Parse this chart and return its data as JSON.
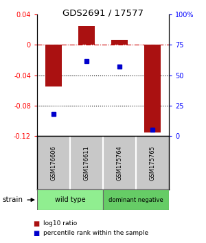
{
  "title": "GDS2691 / 17577",
  "samples": [
    "GSM176606",
    "GSM176611",
    "GSM175764",
    "GSM175765"
  ],
  "log10_ratio": [
    -0.055,
    0.025,
    0.007,
    -0.115
  ],
  "percentile_rank": [
    18,
    62,
    57,
    5
  ],
  "groups": [
    {
      "label": "wild type",
      "samples": [
        0,
        1
      ],
      "color": "#90EE90"
    },
    {
      "label": "dominant negative",
      "samples": [
        2,
        3
      ],
      "color": "#66CC66"
    }
  ],
  "bar_color": "#AA1111",
  "dot_color": "#0000CC",
  "ylim_left": [
    -0.12,
    0.04
  ],
  "ylim_right": [
    0,
    100
  ],
  "yticks_left": [
    0.04,
    0.0,
    -0.04,
    -0.08,
    -0.12
  ],
  "yticks_right": [
    100,
    75,
    50,
    25,
    0
  ],
  "ytick_labels_left": [
    "0.04",
    "0",
    "-0.04",
    "-0.08",
    "-0.12"
  ],
  "ytick_labels_right": [
    "100%",
    "75",
    "50",
    "25",
    "0"
  ],
  "hlines_y": [
    0.0,
    -0.04,
    -0.08
  ],
  "hline_styles": [
    "dashdot",
    "dotted",
    "dotted"
  ],
  "hline_colors": [
    "#CC0000",
    "black",
    "black"
  ],
  "strain_label": "strain",
  "legend_red": "log10 ratio",
  "legend_blue": "percentile rank within the sample",
  "bg_color": "#ffffff",
  "cell_bg": "#c8c8c8",
  "group_colors": [
    "#90EE90",
    "#66CC66"
  ],
  "bar_width": 0.5
}
